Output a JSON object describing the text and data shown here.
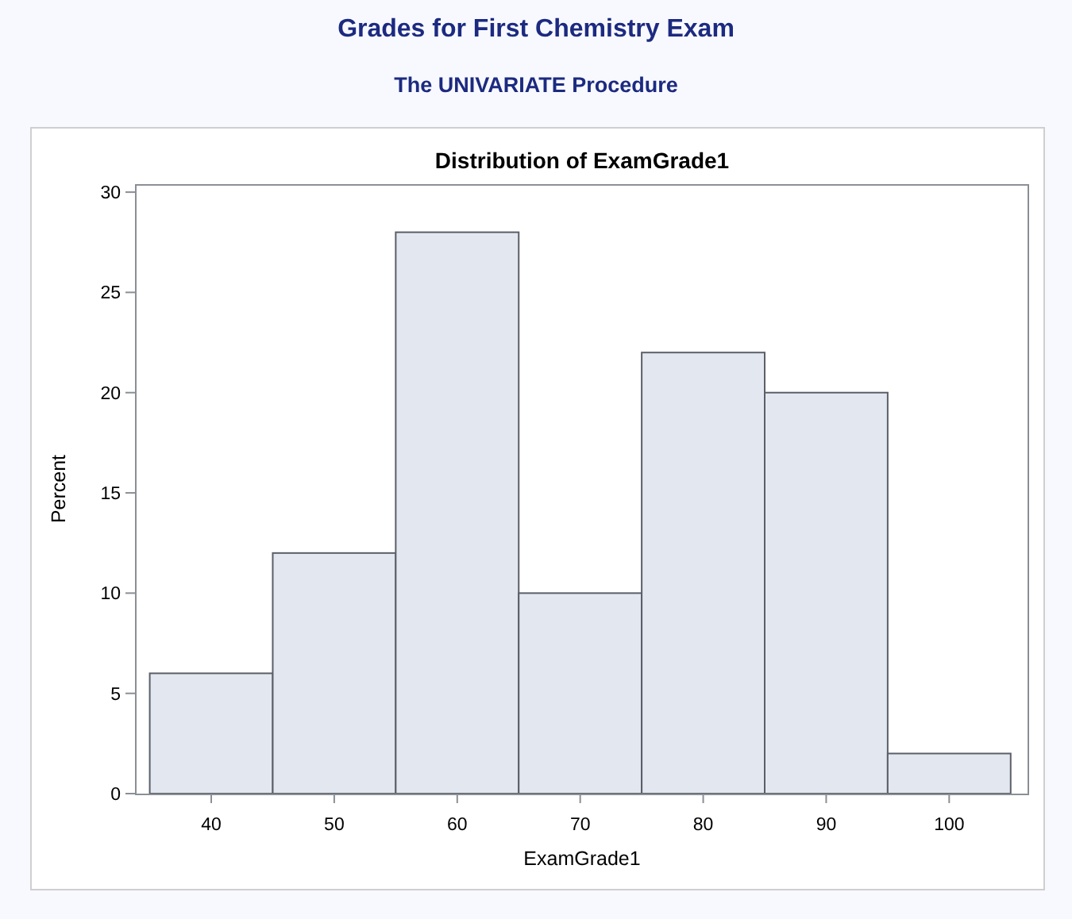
{
  "chart_data": {
    "type": "histogram",
    "title": "Grades for First Chemistry Exam",
    "subtitle": "The UNIVARIATE Procedure",
    "annotations": [
      "Distribution of ExamGrade1"
    ],
    "xlabel": "ExamGrade1",
    "ylabel": "Percent",
    "bins": [
      35,
      45,
      55,
      65,
      75,
      85,
      95,
      105
    ],
    "values": [
      6,
      12,
      28,
      10,
      22,
      20,
      2
    ],
    "color": "#e3e7f0",
    "xlim": [
      33.8,
      106.5
    ],
    "xticks": [
      40,
      50,
      60,
      70,
      80,
      90,
      100
    ],
    "ylim": [
      0,
      30.4
    ],
    "yticks": [
      0,
      5,
      10,
      15,
      20,
      25,
      30
    ],
    "grid": false
  }
}
